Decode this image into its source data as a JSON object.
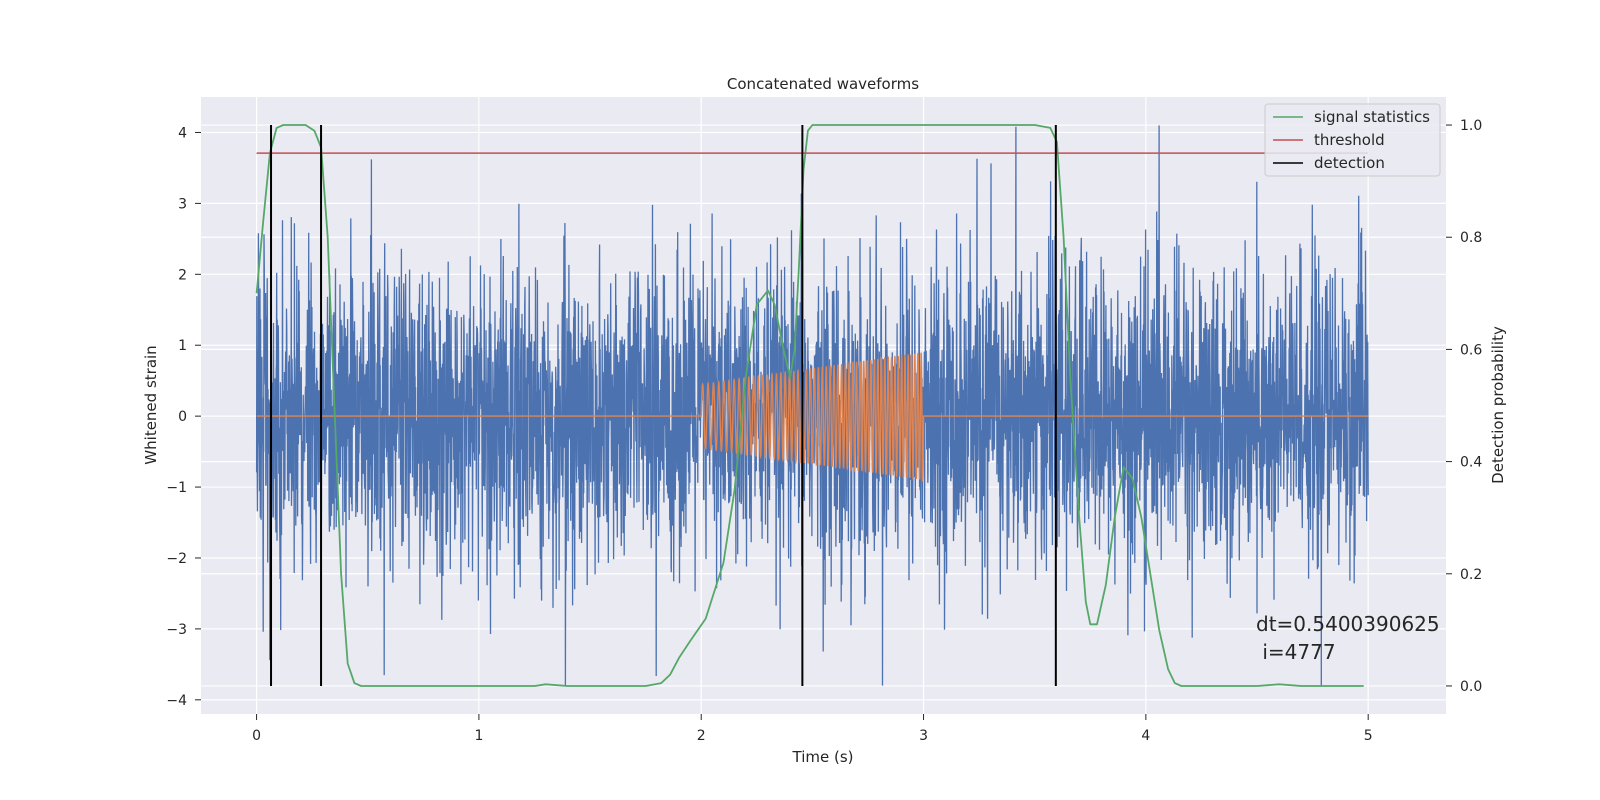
{
  "chart_data": {
    "type": "line",
    "title": "Concatenated waveforms",
    "xlabel": "Time (s)",
    "ylabel_left": "Whitened strain",
    "ylabel_right": "Detection probability",
    "xlim": [
      -0.25,
      5.35
    ],
    "ylim_left": [
      -4.2,
      4.5
    ],
    "ylim_right": [
      -0.05,
      1.05
    ],
    "x_ticks": [
      0,
      1,
      2,
      3,
      4,
      5
    ],
    "x_tick_labels": [
      "0",
      "1",
      "2",
      "3",
      "4",
      "5"
    ],
    "y_left_ticks": [
      -4,
      -3,
      -2,
      -1,
      0,
      1,
      2,
      3,
      4
    ],
    "y_left_tick_labels": [
      "−4",
      "−3",
      "−2",
      "−1",
      "0",
      "1",
      "2",
      "3",
      "4"
    ],
    "y_right_ticks": [
      0.0,
      0.2,
      0.4,
      0.6,
      0.8,
      1.0
    ],
    "y_right_tick_labels": [
      "0.0",
      "0.2",
      "0.4",
      "0.6",
      "0.8",
      "1.0"
    ],
    "grid": true,
    "legend_position": "top-right",
    "legend": [
      {
        "label": "signal statistics",
        "color": "#55a868"
      },
      {
        "label": "threshold",
        "color": "#c44e52"
      },
      {
        "label": "detection",
        "color": "#000000"
      }
    ],
    "annotation": {
      "line1": "dt=0.5400390625",
      "line2": " i=4777"
    },
    "noise": {
      "axis": "left",
      "color": "#4c72b0",
      "x_range": [
        0,
        5
      ],
      "y_range_approx": [
        -3.8,
        4.1
      ]
    },
    "injected_waveform": {
      "axis": "left",
      "color": "#dd8452",
      "flat_range": [
        0,
        5
      ],
      "chirp_start": 2.0,
      "chirp_end": 3.0,
      "amplitude_start": 0.45,
      "amplitude_end": 0.9
    },
    "signal_statistics": {
      "axis": "right",
      "color": "#55a868",
      "x": [
        0.0,
        0.03,
        0.06,
        0.09,
        0.12,
        0.17,
        0.22,
        0.26,
        0.29,
        0.32,
        0.35,
        0.38,
        0.41,
        0.44,
        0.47,
        0.6,
        1.0,
        1.25,
        1.3,
        1.4,
        1.55,
        1.75,
        1.82,
        1.86,
        1.9,
        1.95,
        2.02,
        2.1,
        2.15,
        2.2,
        2.25,
        2.3,
        2.33,
        2.37,
        2.4,
        2.42,
        2.44,
        2.46,
        2.48,
        2.5,
        2.53,
        2.6,
        3.0,
        3.5,
        3.57,
        3.6,
        3.63,
        3.66,
        3.7,
        3.73,
        3.75,
        3.78,
        3.82,
        3.86,
        3.9,
        3.94,
        3.98,
        4.02,
        4.06,
        4.1,
        4.13,
        4.16,
        4.3,
        4.5,
        4.6,
        4.7,
        4.98
      ],
      "y": [
        0.7,
        0.83,
        0.95,
        0.995,
        1.0,
        1.0,
        1.0,
        0.99,
        0.96,
        0.8,
        0.5,
        0.2,
        0.04,
        0.005,
        0.0,
        0.0,
        0.0,
        0.0,
        0.003,
        0.0,
        0.0,
        0.0,
        0.005,
        0.02,
        0.05,
        0.08,
        0.12,
        0.22,
        0.35,
        0.55,
        0.68,
        0.705,
        0.68,
        0.6,
        0.55,
        0.6,
        0.75,
        0.92,
        0.99,
        1.0,
        1.0,
        1.0,
        1.0,
        1.0,
        0.995,
        0.97,
        0.8,
        0.55,
        0.3,
        0.15,
        0.11,
        0.11,
        0.18,
        0.3,
        0.39,
        0.37,
        0.3,
        0.2,
        0.1,
        0.03,
        0.005,
        0.0,
        0.0,
        0.0,
        0.003,
        0.0,
        0.0
      ]
    },
    "threshold": {
      "axis": "right",
      "color": "#c44e52",
      "value": 0.95,
      "x_range": [
        0,
        5
      ]
    },
    "detections": {
      "axis": "right",
      "color": "#000000",
      "x": [
        0.065,
        0.29,
        2.455,
        3.595
      ],
      "y_range": [
        0,
        1.0
      ]
    }
  }
}
